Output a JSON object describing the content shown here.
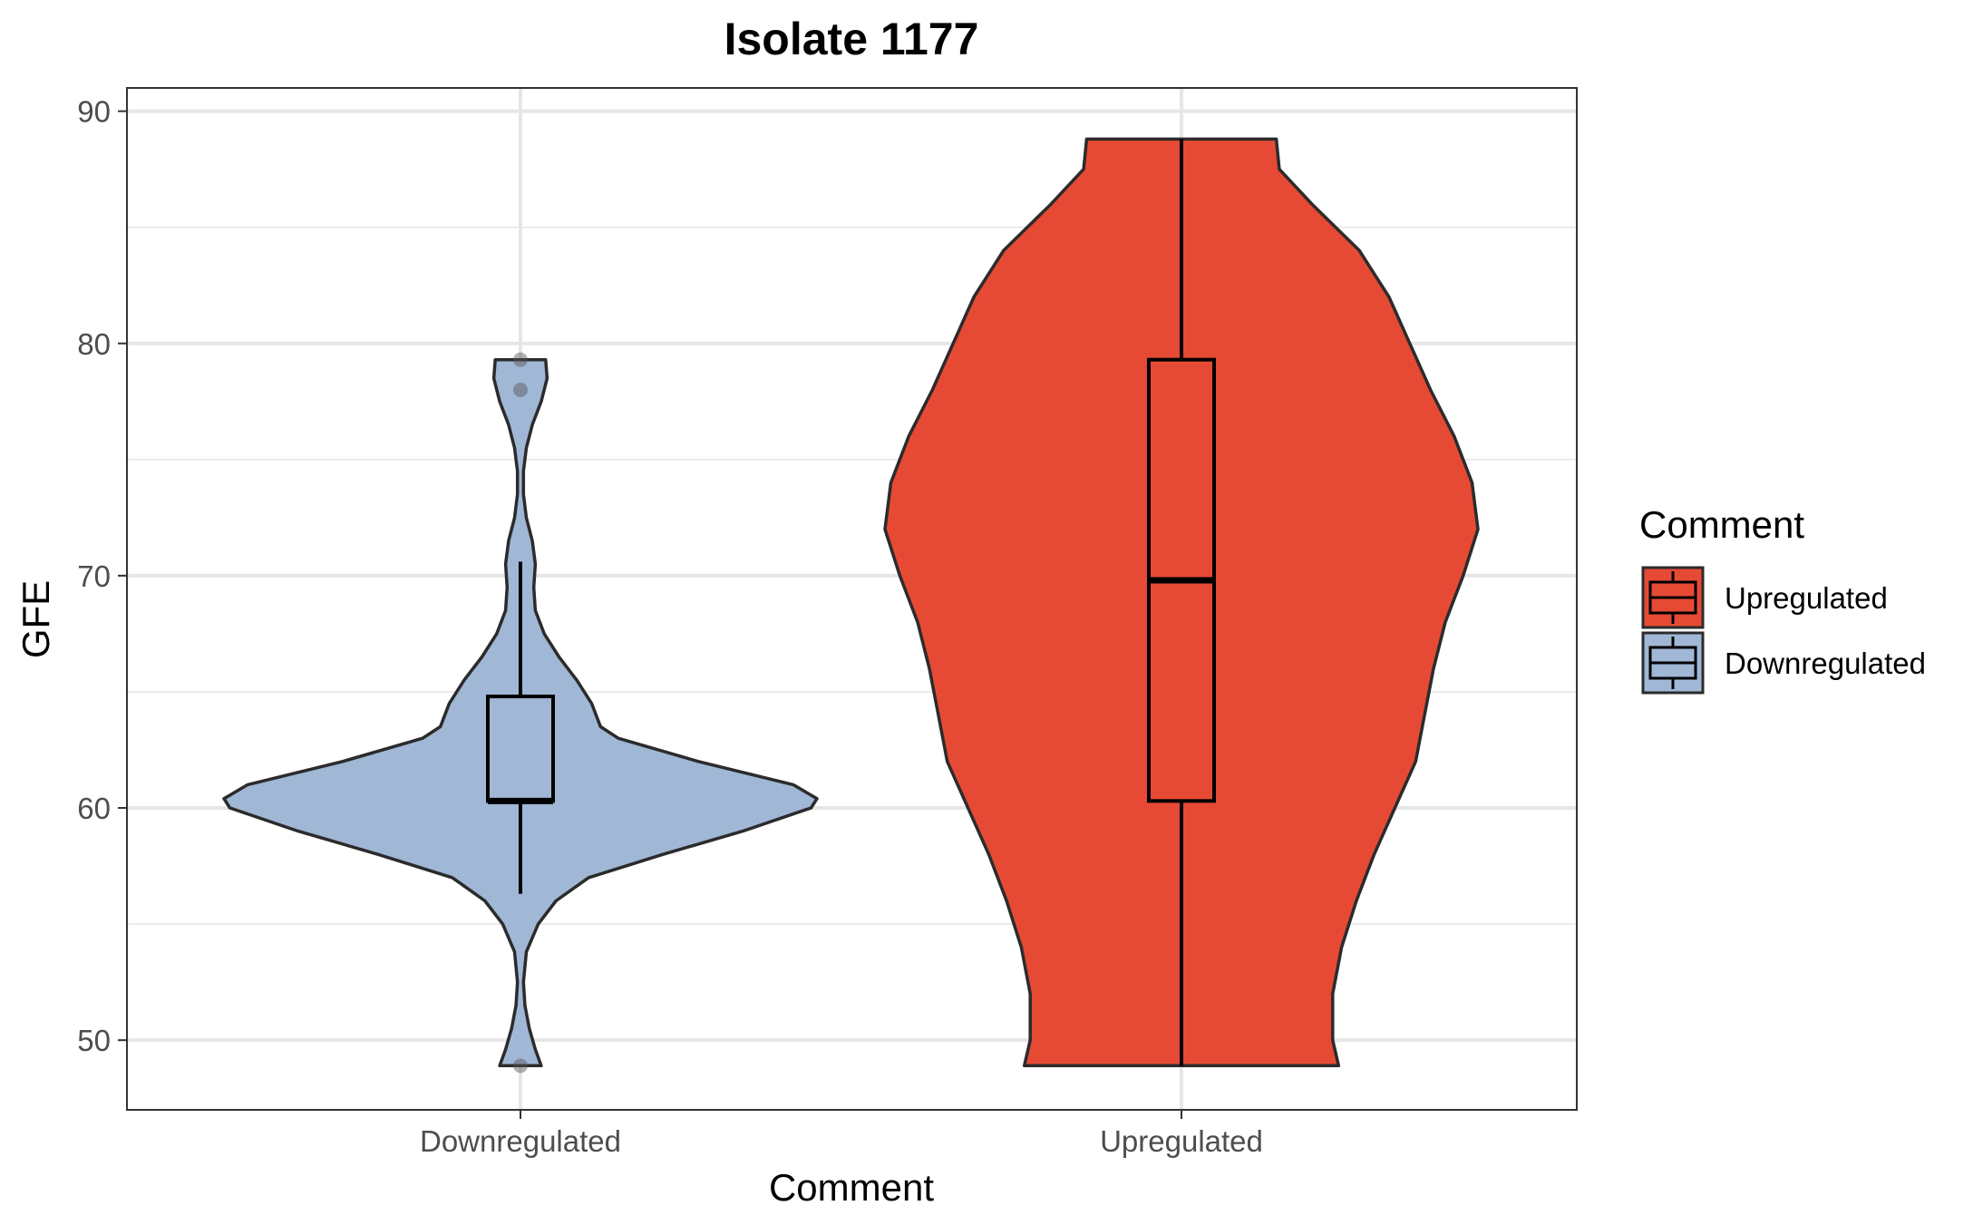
{
  "chart_data": {
    "type": "violin",
    "title": "Isolate 1177",
    "xlabel": "Comment",
    "ylabel": "GFE",
    "categories": [
      "Downregulated",
      "Upregulated"
    ],
    "ylim": [
      47,
      91
    ],
    "yticks": [
      50,
      60,
      70,
      80,
      90
    ],
    "grid": true,
    "legend": {
      "title": "Comment",
      "position": "right",
      "entries": [
        "Upregulated",
        "Downregulated"
      ]
    },
    "series": [
      {
        "name": "Downregulated",
        "color": "#a0b7d6",
        "box": {
          "q1": 60.3,
          "median": 60.3,
          "q3": 64.8,
          "whisker_low": 56.3,
          "whisker_high": 70.6
        },
        "outliers": [
          79.3,
          78.0,
          48.9
        ],
        "violin_range": [
          48.9,
          79.3
        ],
        "density": [
          [
            48.9,
            0.07
          ],
          [
            49.6,
            0.05
          ],
          [
            50.5,
            0.03
          ],
          [
            51.5,
            0.015
          ],
          [
            52.5,
            0.01
          ],
          [
            53.8,
            0.02
          ],
          [
            55.0,
            0.06
          ],
          [
            56.0,
            0.12
          ],
          [
            57.0,
            0.23
          ],
          [
            58.0,
            0.48
          ],
          [
            59.0,
            0.75
          ],
          [
            60.0,
            0.98
          ],
          [
            60.4,
            1.0
          ],
          [
            61.0,
            0.92
          ],
          [
            62.0,
            0.6
          ],
          [
            63.0,
            0.33
          ],
          [
            63.5,
            0.27
          ],
          [
            64.5,
            0.24
          ],
          [
            65.5,
            0.19
          ],
          [
            66.5,
            0.13
          ],
          [
            67.5,
            0.08
          ],
          [
            68.5,
            0.05
          ],
          [
            69.5,
            0.045
          ],
          [
            70.5,
            0.05
          ],
          [
            71.5,
            0.04
          ],
          [
            72.5,
            0.02
          ],
          [
            73.5,
            0.01
          ],
          [
            74.5,
            0.01
          ],
          [
            75.5,
            0.02
          ],
          [
            76.5,
            0.04
          ],
          [
            77.5,
            0.07
          ],
          [
            78.5,
            0.09
          ],
          [
            79.3,
            0.085
          ]
        ]
      },
      {
        "name": "Upregulated",
        "color": "#e64a35",
        "box": {
          "q1": 60.3,
          "median": 69.8,
          "q3": 79.3,
          "whisker_low": 48.9,
          "whisker_high": 88.8
        },
        "outliers": [],
        "violin_range": [
          48.9,
          88.8
        ],
        "density": [
          [
            48.9,
            0.53
          ],
          [
            50.0,
            0.51
          ],
          [
            52.0,
            0.51
          ],
          [
            54.0,
            0.54
          ],
          [
            56.0,
            0.59
          ],
          [
            58.0,
            0.65
          ],
          [
            60.0,
            0.72
          ],
          [
            62.0,
            0.79
          ],
          [
            64.0,
            0.82
          ],
          [
            66.0,
            0.85
          ],
          [
            68.0,
            0.89
          ],
          [
            70.0,
            0.95
          ],
          [
            72.0,
            1.0
          ],
          [
            74.0,
            0.98
          ],
          [
            76.0,
            0.92
          ],
          [
            78.0,
            0.84
          ],
          [
            80.0,
            0.77
          ],
          [
            82.0,
            0.7
          ],
          [
            84.0,
            0.6
          ],
          [
            86.0,
            0.44
          ],
          [
            87.5,
            0.33
          ],
          [
            88.8,
            0.32
          ]
        ]
      }
    ]
  }
}
